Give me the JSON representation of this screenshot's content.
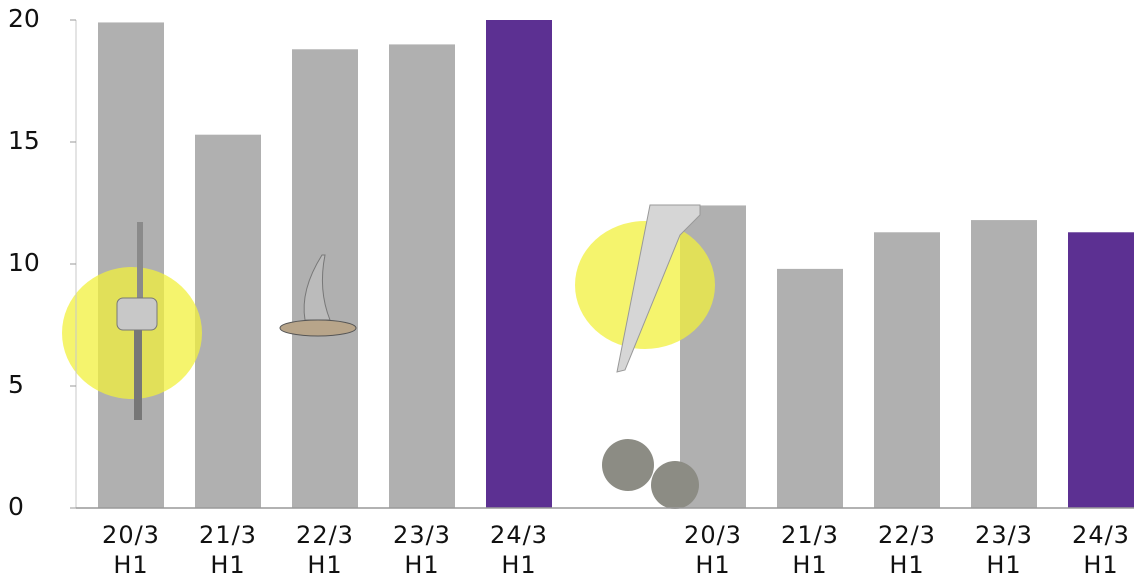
{
  "chart_data": {
    "type": "bar",
    "categories": [
      "20/3\nH1",
      "21/3\nH1",
      "22/3\nH1",
      "23/3\nH1",
      "24/3\nH1",
      null,
      "20/3\nH1",
      "21/3\nH1",
      "22/3\nH1",
      "23/3\nH1",
      "24/3\nH1"
    ],
    "values": [
      19.9,
      15.3,
      18.8,
      19.0,
      20.0,
      null,
      12.4,
      9.8,
      11.3,
      11.8,
      11.3
    ],
    "colors": [
      "#b0b0b0",
      "#b0b0b0",
      "#b0b0b0",
      "#b0b0b0",
      "#5c3092",
      null,
      "#b0b0b0",
      "#b0b0b0",
      "#b0b0b0",
      "#b0b0b0",
      "#5c3092"
    ],
    "ylim": [
      0,
      20
    ],
    "yticks": [
      0,
      5,
      10,
      15,
      20
    ],
    "grid": false
  }
}
